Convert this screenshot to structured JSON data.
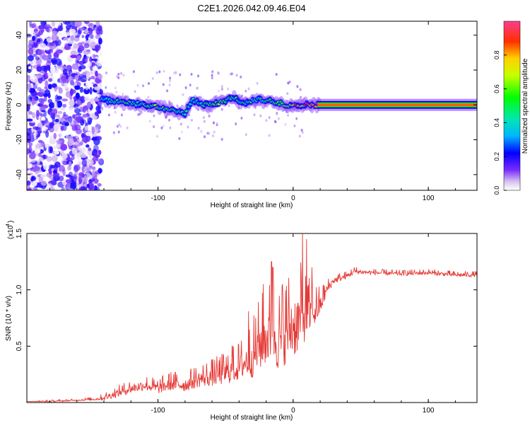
{
  "title": "C2E1.2026.042.09.46.E04",
  "colors": {
    "line": "#e53935",
    "axis": "#000000",
    "background": "#ffffff"
  },
  "spectrogram": {
    "xlabel": "Height of straight line (km)",
    "ylabel": "Frequency (Hz)",
    "xlim": [
      -197,
      136
    ],
    "ylim": [
      -49,
      48
    ],
    "xticks": [
      -100,
      0,
      100
    ],
    "yticks": [
      -40,
      -20,
      0,
      20,
      40
    ],
    "colorbar": {
      "label": "Normalized spectral amplitude",
      "ticks": [
        "0.0",
        "0.2",
        "0.4",
        "0.6",
        "0.8"
      ],
      "range": [
        0,
        1
      ]
    }
  },
  "chart_data": [
    {
      "type": "heatmap",
      "title": "C2E1.2026.042.09.46.E04",
      "xlabel": "Height of straight line (km)",
      "ylabel": "Frequency (Hz)",
      "xlim": [
        -197,
        136
      ],
      "ylim": [
        -49,
        48
      ],
      "colorbar_label": "Normalized spectral amplitude",
      "ridge": [
        {
          "x": -140,
          "f": 3,
          "a": 0.35
        },
        {
          "x": -130,
          "f": 2,
          "a": 0.45
        },
        {
          "x": -120,
          "f": 1,
          "a": 0.5
        },
        {
          "x": -110,
          "f": 0,
          "a": 0.5
        },
        {
          "x": -100,
          "f": -1,
          "a": 0.55
        },
        {
          "x": -90,
          "f": -3,
          "a": 0.5
        },
        {
          "x": -80,
          "f": -5,
          "a": 0.45
        },
        {
          "x": -75,
          "f": 3,
          "a": 0.4
        },
        {
          "x": -65,
          "f": 0,
          "a": 0.5
        },
        {
          "x": -55,
          "f": 1,
          "a": 0.55
        },
        {
          "x": -45,
          "f": 4,
          "a": 0.5
        },
        {
          "x": -35,
          "f": 1,
          "a": 0.45
        },
        {
          "x": -25,
          "f": 3,
          "a": 0.45
        },
        {
          "x": -15,
          "f": 2,
          "a": 0.5
        },
        {
          "x": -5,
          "f": 0,
          "a": 0.65
        },
        {
          "x": 5,
          "f": 0,
          "a": 0.8
        },
        {
          "x": 15,
          "f": 0,
          "a": 0.9
        },
        {
          "x": 20,
          "f": 0,
          "a": 1.0
        },
        {
          "x": 136,
          "f": 0,
          "a": 1.0
        }
      ]
    },
    {
      "type": "line",
      "title": "",
      "xlabel": "Height of straight line (km)",
      "ylabel": "SNR (10 * v/v)",
      "y_multiplier_label": "(x10",
      "y_multiplier_exp": "4",
      "xlim": [
        -197,
        136
      ],
      "ylim": [
        0,
        1.5
      ],
      "xticks": [
        -100,
        0,
        100
      ],
      "yticks": [
        0.5,
        1.0,
        1.5
      ],
      "series": [
        {
          "name": "SNR",
          "x": [
            -197,
            -180,
            -160,
            -145,
            -140,
            -130,
            -120,
            -110,
            -100,
            -90,
            -80,
            -70,
            -60,
            -50,
            -40,
            -35,
            -30,
            -25,
            -20,
            -15,
            -10,
            -5,
            0,
            5,
            7,
            10,
            15,
            20,
            25,
            30,
            40,
            45,
            60,
            80,
            100,
            120,
            136
          ],
          "y": [
            0.01,
            0.01,
            0.02,
            0.03,
            0.04,
            0.08,
            0.12,
            0.15,
            0.12,
            0.16,
            0.15,
            0.2,
            0.22,
            0.25,
            0.3,
            0.35,
            0.38,
            0.48,
            0.55,
            0.58,
            0.5,
            0.6,
            0.65,
            0.7,
            0.75,
            0.72,
            0.78,
            0.85,
            1.0,
            1.08,
            1.12,
            1.16,
            1.15,
            1.14,
            1.15,
            1.13,
            1.13
          ],
          "noise": [
            0.0,
            0.01,
            0.01,
            0.02,
            0.04,
            0.06,
            0.07,
            0.08,
            0.08,
            0.1,
            0.1,
            0.12,
            0.14,
            0.17,
            0.2,
            0.25,
            0.3,
            0.38,
            0.42,
            0.45,
            0.45,
            0.45,
            0.5,
            0.45,
            0.4,
            0.35,
            0.25,
            0.15,
            0.08,
            0.05,
            0.04,
            0.04,
            0.03,
            0.03,
            0.03,
            0.03,
            0.03
          ]
        }
      ],
      "peaks": [
        {
          "x": -45,
          "y": 0.5
        },
        {
          "x": -33,
          "y": 0.81
        },
        {
          "x": -22,
          "y": 1.05
        },
        {
          "x": -16,
          "y": 1.25
        },
        {
          "x": -15,
          "y": 1.2
        },
        {
          "x": -8,
          "y": 1.05
        },
        {
          "x": 7,
          "y": 1.5
        },
        {
          "x": 10,
          "y": 1.45
        },
        {
          "x": 14,
          "y": 1.2
        }
      ]
    }
  ]
}
